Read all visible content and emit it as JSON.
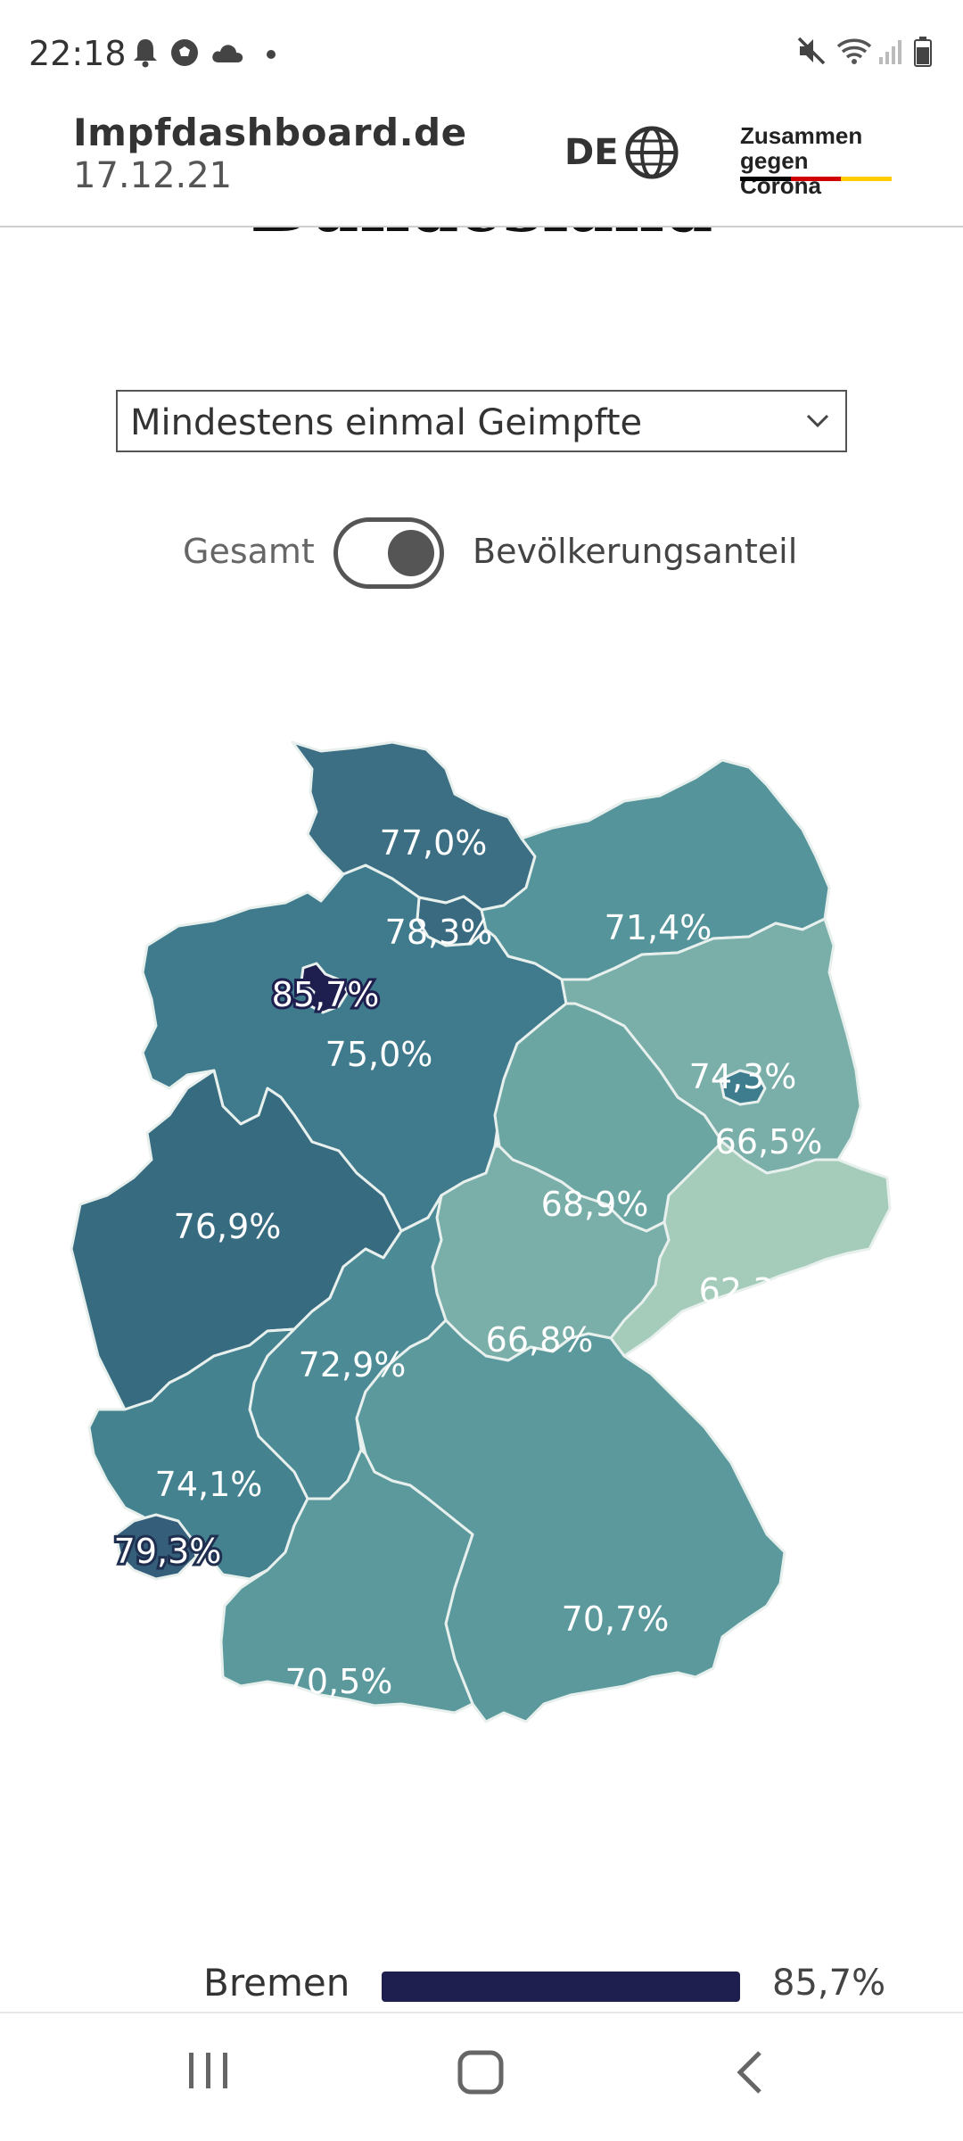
{
  "status_bar": {
    "time": "22:18",
    "left_icons": [
      "bell-icon",
      "soccer-icon",
      "cloud-icon",
      "dot-icon"
    ],
    "right_icons": [
      "mute-icon",
      "wifi-icon",
      "signal-icon",
      "battery-icon"
    ]
  },
  "header": {
    "site_name": "Impfdashboard.de",
    "date": "17.12.21",
    "language": "DE",
    "brand_line1": "Zusammen",
    "brand_line2": "gegen Corona",
    "brand_colors": [
      "#000000",
      "#d00000",
      "#ffcc00"
    ]
  },
  "section": {
    "heading": "Bundesland"
  },
  "filter": {
    "selected": "Mindestens einmal Geimpfte"
  },
  "toggle": {
    "left_label": "Gesamt",
    "right_label": "Bevölkerungsanteil",
    "state": "right"
  },
  "map": {
    "regions": [
      {
        "name": "schleswig-holstein",
        "value": "77,0%",
        "color": "#3c6f83"
      },
      {
        "name": "hamburg",
        "value": "78,3%",
        "color": "#3a6a80"
      },
      {
        "name": "mecklenburg-vorpommern",
        "value": "71,4%",
        "color": "#55949b"
      },
      {
        "name": "bremen",
        "value": "85,7%",
        "color": "#1f1f4f"
      },
      {
        "name": "niedersachsen",
        "value": "75,0%",
        "color": "#3f7b8c"
      },
      {
        "name": "berlin",
        "value": "74,3%",
        "color": "#3d7d8d"
      },
      {
        "name": "brandenburg",
        "value": "66,5%",
        "color": "#79aea9"
      },
      {
        "name": "sachsen-anhalt",
        "value": "68,9%",
        "color": "#6ca6a3"
      },
      {
        "name": "nordrhein-westfalen",
        "value": "76,9%",
        "color": "#376b80"
      },
      {
        "name": "sachsen",
        "value": "62,3%",
        "color": "#a5cbbb"
      },
      {
        "name": "thueringen",
        "value": "66,8%",
        "color": "#79aea9"
      },
      {
        "name": "hessen",
        "value": "72,9%",
        "color": "#4c8a95"
      },
      {
        "name": "rheinland-pfalz",
        "value": "74,1%",
        "color": "#44828f"
      },
      {
        "name": "saarland",
        "value": "79,3%",
        "color": "#355e7a"
      },
      {
        "name": "bayern",
        "value": "70,7%",
        "color": "#5b999d"
      },
      {
        "name": "baden-wuerttemberg",
        "value": "70,5%",
        "color": "#5b999d"
      }
    ]
  },
  "ranking": {
    "label": "Bremen",
    "value": "85,7%",
    "fraction": 0.857,
    "color": "#1f1f4f"
  },
  "nav": {
    "buttons": [
      "recents-icon",
      "home-icon",
      "back-icon"
    ]
  }
}
